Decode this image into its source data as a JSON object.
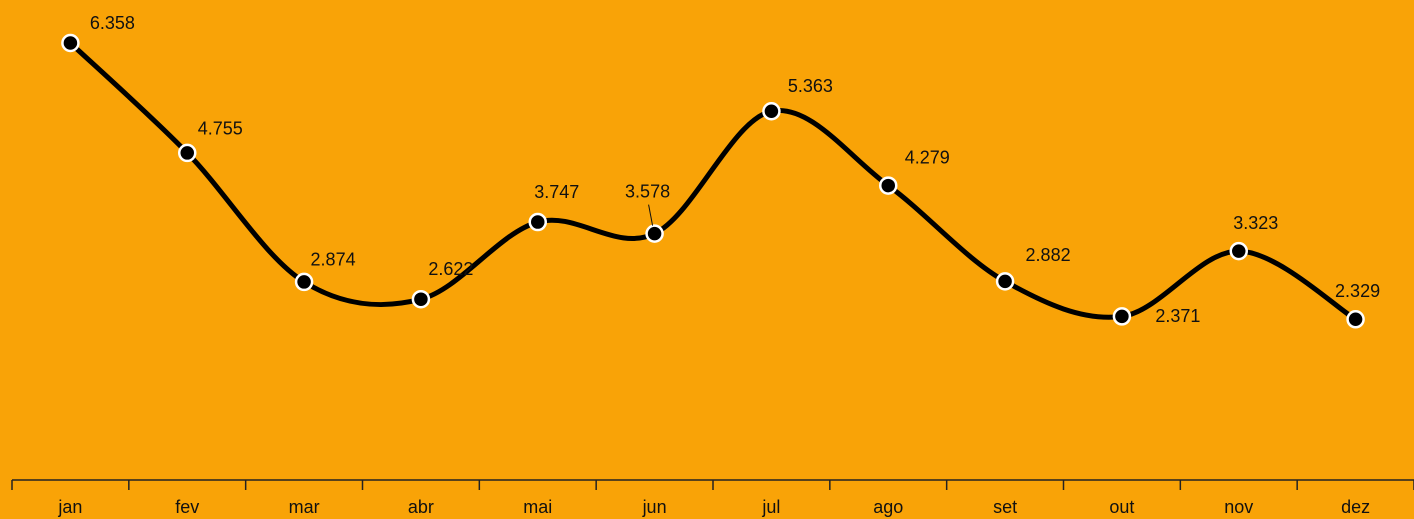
{
  "chart_data": {
    "type": "line",
    "categories": [
      "jan",
      "fev",
      "mar",
      "abr",
      "mai",
      "jun",
      "jul",
      "ago",
      "set",
      "out",
      "nov",
      "dez"
    ],
    "values": [
      6358,
      4755,
      2874,
      2622,
      3747,
      3578,
      5363,
      4279,
      2882,
      2371,
      3323,
      2329
    ],
    "value_labels": [
      "6.358",
      "4.755",
      "2.874",
      "2.622",
      "3.747",
      "3.578",
      "5.363",
      "4.279",
      "2.882",
      "2.371",
      "3.323",
      "2.329"
    ],
    "color": "#000000",
    "smooth": true
  }
}
